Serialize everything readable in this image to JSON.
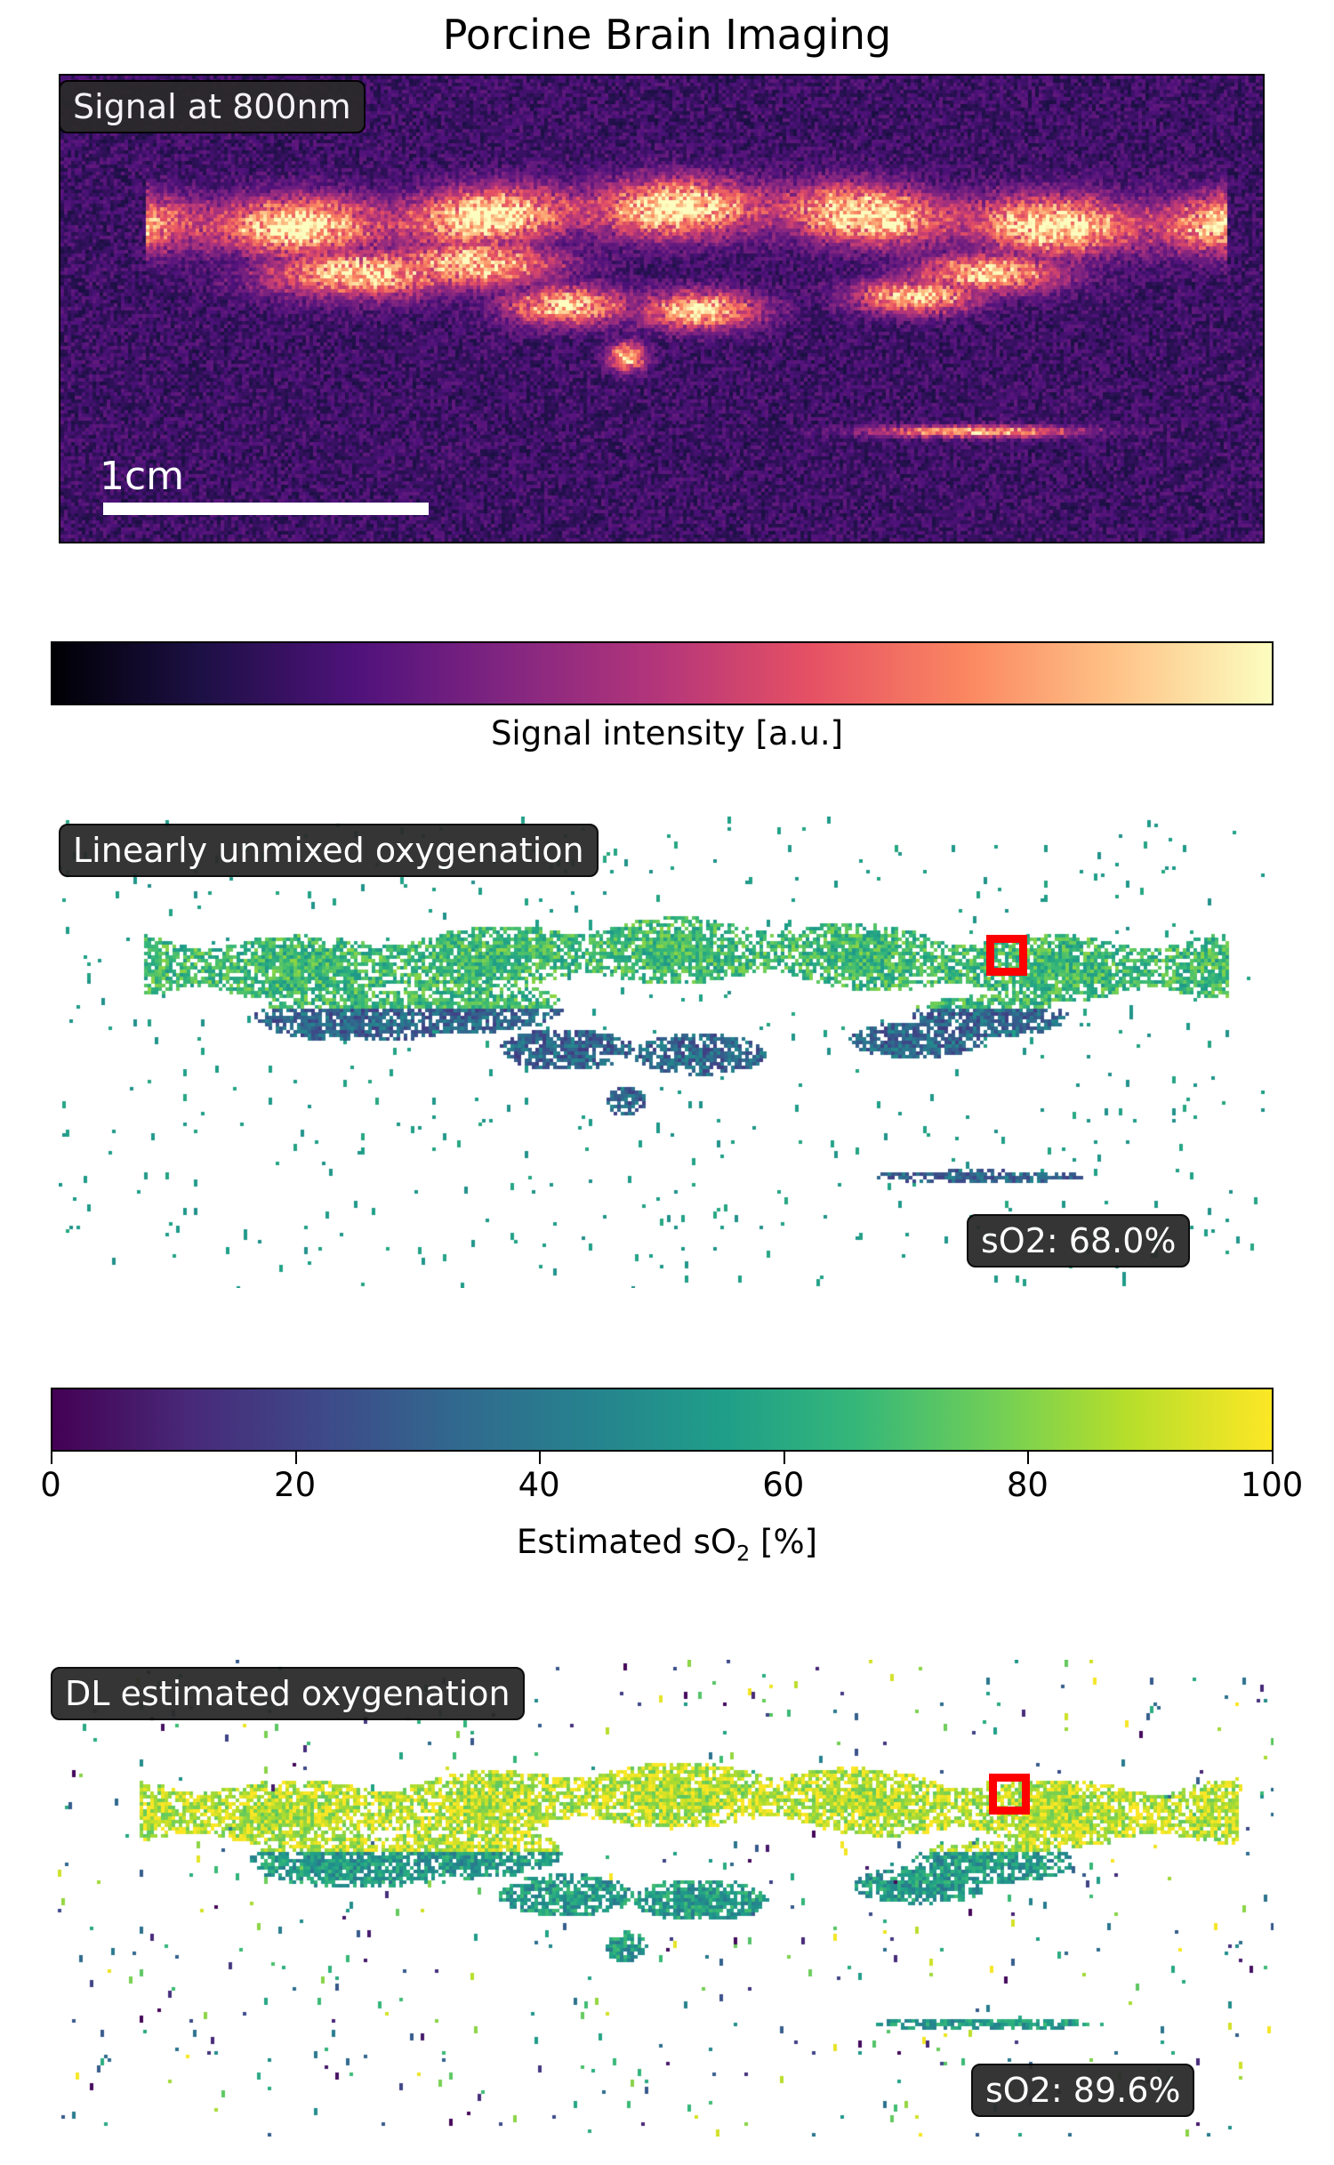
{
  "figure": {
    "title": "Porcine Brain Imaging"
  },
  "panels": {
    "signal": {
      "label": "Signal at 800nm",
      "scale_bar_label": "1cm",
      "colormap": "magma"
    },
    "linear": {
      "label": "Linearly unmixed oxygenation",
      "so2_text": "sO2: 68.0%",
      "so2_value": 68.0,
      "colormap": "viridis"
    },
    "dl": {
      "label": "DL estimated oxygenation",
      "so2_text": "sO2: 89.6%",
      "so2_value": 89.6,
      "colormap": "viridis"
    }
  },
  "colorbars": {
    "signal": {
      "label": "Signal intensity [a.u.]",
      "colormap": "magma"
    },
    "so2": {
      "label_prefix": "Estimated sO",
      "label_sub": "2",
      "label_suffix": " [%]",
      "colormap": "viridis",
      "ticks": [
        "0",
        "20",
        "40",
        "60",
        "80",
        "100"
      ],
      "range": [
        0,
        100
      ]
    }
  },
  "chart_data": [
    {
      "type": "heatmap",
      "title": "Signal at 800nm",
      "colormap": "magma",
      "colorbar_label": "Signal intensity [a.u.]",
      "annotation": "1cm"
    },
    {
      "type": "heatmap",
      "title": "Linearly unmixed oxygenation",
      "colormap": "viridis",
      "value_range": [
        0,
        100
      ],
      "roi_so2_percent": 68.0
    },
    {
      "type": "heatmap",
      "title": "DL estimated oxygenation",
      "colormap": "viridis",
      "value_range": [
        0,
        100
      ],
      "roi_so2_percent": 89.6
    }
  ]
}
